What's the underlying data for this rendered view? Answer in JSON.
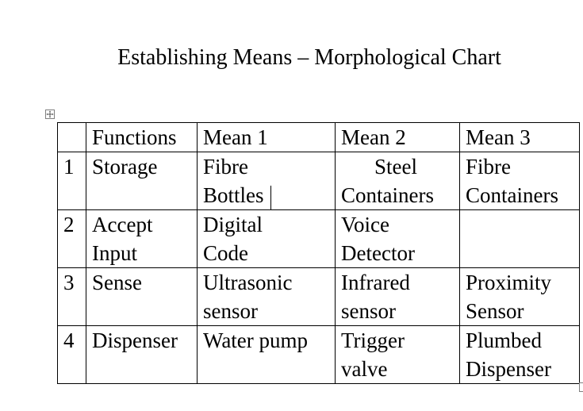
{
  "document": {
    "title": "Establishing Means – Morphological Chart"
  },
  "table": {
    "headers": [
      "",
      "Functions",
      "Mean 1",
      "Mean 2",
      "Mean 3"
    ],
    "rows": [
      {
        "num": "1",
        "function": [
          "Storage"
        ],
        "mean1": [
          "Fibre",
          "Bottles"
        ],
        "mean2": [
          "Steel",
          "Containers"
        ],
        "mean3": [
          "Fibre",
          "Containers"
        ]
      },
      {
        "num": "2",
        "function": [
          "Accept",
          "Input"
        ],
        "mean1": [
          "Digital",
          "Code"
        ],
        "mean2": [
          "Voice",
          "Detector"
        ],
        "mean3": []
      },
      {
        "num": "3",
        "function": [
          "Sense"
        ],
        "mean1": [
          "Ultrasonic",
          "sensor"
        ],
        "mean2": [
          "Infrared",
          "sensor"
        ],
        "mean3": [
          "Proximity",
          "Sensor"
        ]
      },
      {
        "num": "4",
        "function": [
          "Dispenser"
        ],
        "mean1": [
          "Water pump"
        ],
        "mean2": [
          "Trigger",
          "valve"
        ],
        "mean3": [
          "Plumbed",
          "Dispenser"
        ]
      }
    ]
  }
}
